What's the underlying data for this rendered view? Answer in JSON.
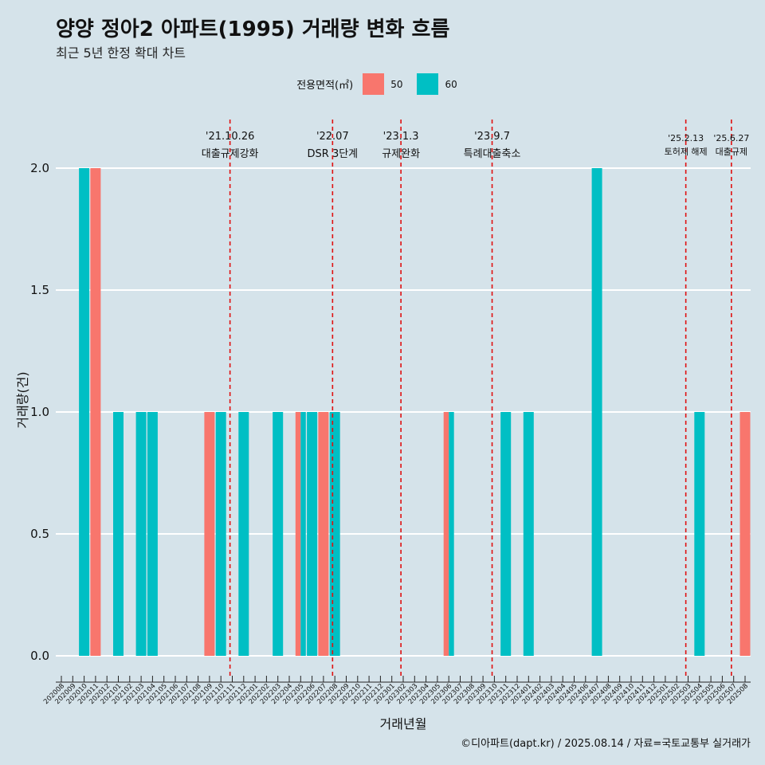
{
  "title": "양양 정아2 아파트(1995) 거래량 변화 흐름",
  "subtitle": "최근 5년 한정 확대 차트",
  "caption": "©디아파트(dapt.kr) / 2025.08.14 / 자료=국토교통부 실거래가",
  "legend": {
    "title": "전용면적(㎡)",
    "items": [
      {
        "label": "50",
        "color": "#f8766d"
      },
      {
        "label": "60",
        "color": "#00bfc4"
      }
    ]
  },
  "chart_data": {
    "type": "bar",
    "xlabel": "거래년월",
    "ylabel": "거래량(건)",
    "ylim": [
      0,
      2
    ],
    "yticks": [
      "0.0",
      "0.5",
      "1.0",
      "1.5",
      "2.0"
    ],
    "categories": [
      "202008",
      "202009",
      "202010",
      "202011",
      "202012",
      "202101",
      "202102",
      "202103",
      "202104",
      "202105",
      "202106",
      "202107",
      "202108",
      "202109",
      "202110",
      "202111",
      "202112",
      "202201",
      "202202",
      "202203",
      "202204",
      "202205",
      "202206",
      "202207",
      "202208",
      "202209",
      "202210",
      "202211",
      "202212",
      "202301",
      "202302",
      "202303",
      "202304",
      "202305",
      "202306",
      "202307",
      "202308",
      "202309",
      "202310",
      "202311",
      "202312",
      "202401",
      "202402",
      "202403",
      "202404",
      "202405",
      "202406",
      "202407",
      "202408",
      "202409",
      "202410",
      "202411",
      "202412",
      "202501",
      "202502",
      "202503",
      "202504",
      "202505",
      "202506",
      "202507",
      "202508"
    ],
    "series": [
      {
        "name": "50",
        "color": "#f8766d",
        "values": [
          0,
          0,
          0,
          2,
          0,
          0,
          0,
          0,
          0,
          0,
          0,
          0,
          0,
          1,
          0,
          0,
          0,
          0,
          0,
          0,
          0,
          1,
          0,
          1,
          0,
          0,
          0,
          0,
          0,
          0,
          0,
          0,
          0,
          0,
          1,
          0,
          0,
          0,
          0,
          0,
          0,
          0,
          0,
          0,
          0,
          0,
          0,
          0,
          0,
          0,
          0,
          0,
          0,
          0,
          0,
          0,
          0,
          0,
          0,
          0,
          1
        ]
      },
      {
        "name": "60",
        "color": "#00bfc4",
        "values": [
          0,
          0,
          2,
          0,
          0,
          1,
          0,
          1,
          1,
          0,
          0,
          0,
          0,
          0,
          1,
          0,
          1,
          0,
          0,
          1,
          0,
          1,
          1,
          0,
          1,
          0,
          0,
          0,
          0,
          0,
          0,
          0,
          0,
          0,
          1,
          0,
          0,
          0,
          0,
          1,
          0,
          1,
          0,
          0,
          0,
          0,
          0,
          2,
          0,
          0,
          0,
          0,
          0,
          0,
          0,
          0,
          1,
          0,
          0,
          0,
          0
        ]
      }
    ],
    "events": [
      {
        "date": "'21.10.26",
        "label": "대출규제강화",
        "month": 14.8
      },
      {
        "date": "'22.07",
        "label": "DSR 3단계",
        "month": 23.8
      },
      {
        "date": "'23.1.3",
        "label": "규제완화",
        "month": 29.8
      },
      {
        "date": "'23.9.7",
        "label": "특례대출축소",
        "month": 37.8
      },
      {
        "date": "'25.2.13",
        "label": "토허제 해제",
        "month": 54.8
      },
      {
        "date": "'25.6.27",
        "label": "대출규제",
        "month": 58.8
      }
    ]
  }
}
